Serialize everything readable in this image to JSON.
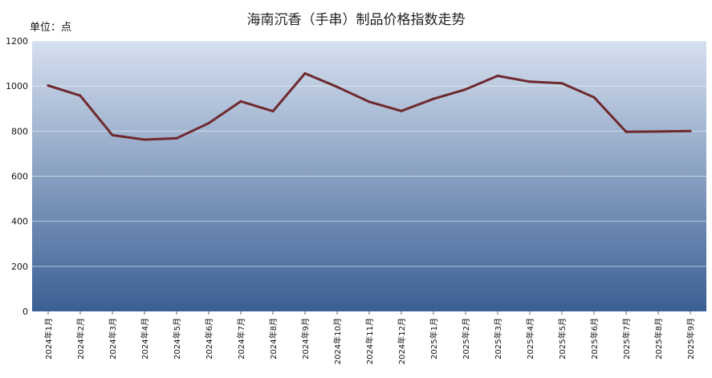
{
  "chart_data": {
    "type": "line",
    "title": "海南沉香（手串）制品价格指数走势",
    "unit_label": "单位：点",
    "xlabel": "",
    "ylabel": "",
    "ylim": [
      0,
      1200
    ],
    "y_ticks": [
      0,
      200,
      400,
      600,
      800,
      1000,
      1200
    ],
    "grid": true,
    "legend": "none",
    "categories": [
      "2024年1月",
      "2024年2月",
      "2024年3月",
      "2024年4月",
      "2024年5月",
      "2024年6月",
      "2024年7月",
      "2024年8月",
      "2024年9月",
      "2024年10月",
      "2024年11月",
      "2024年12月",
      "2025年1月",
      "2025年2月",
      "2025年3月",
      "2025年4月",
      "2025年5月",
      "2025年6月",
      "2025年7月",
      "2025年8月",
      "2025年9月"
    ],
    "series": [
      {
        "values": [
          1002,
          957,
          782,
          762,
          768,
          835,
          932,
          888,
          1056,
          996,
          930,
          889,
          943,
          985,
          1045,
          1019,
          1012,
          950,
          797,
          798,
          800
        ],
        "color": "#6e2a2e"
      }
    ],
    "colors": {
      "plot_top": "#d6e0ef",
      "plot_bottom": "#3a5f93",
      "grid": "#ffffff"
    }
  }
}
